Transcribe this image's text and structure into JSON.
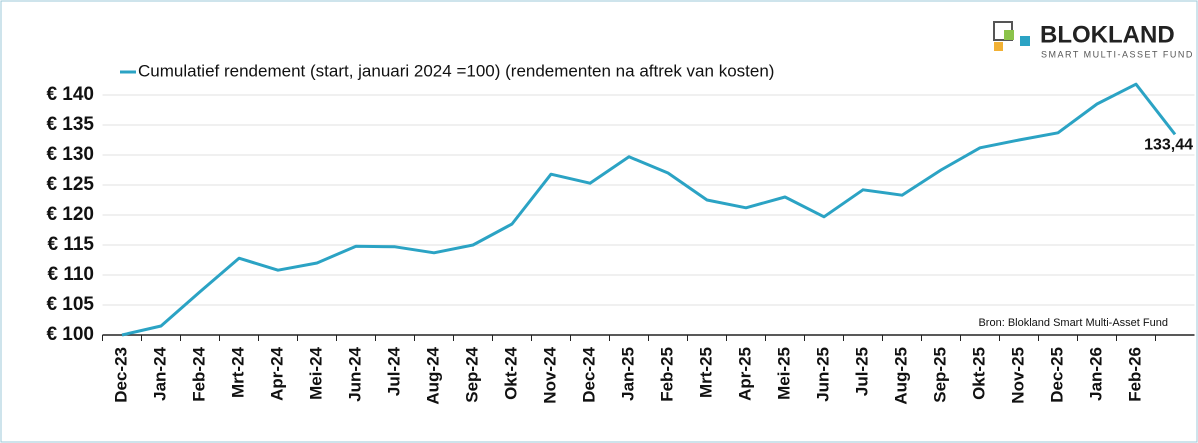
{
  "chart_data": {
    "type": "line",
    "legend": "Cumulatief rendement (start, januari 2024 =100) (rendementen na aftrek van kosten)",
    "source": "Bron: Blokland Smart Multi-Asset Fund",
    "logo": {
      "name": "BLOKLAND",
      "tagline": "SMART MULTI-ASSET FUND"
    },
    "categories": [
      "Dec-23",
      "Jan-24",
      "Feb-24",
      "Mrt-24",
      "Apr-24",
      "Mei-24",
      "Jun-24",
      "Jul-24",
      "Aug-24",
      "Sep-24",
      "Okt-24",
      "Nov-24",
      "Dec-24",
      "Jan-25",
      "Feb-25",
      "Mrt-25",
      "Apr-25",
      "Mei-25",
      "Jun-25",
      "Jul-25",
      "Aug-25",
      "Sep-25",
      "Okt-25",
      "Nov-25",
      "Dec-25",
      "Jan-26",
      "Feb-26",
      null
    ],
    "series": [
      {
        "name": "Cumulatief rendement",
        "color": "#2ba3c4",
        "values": [
          100,
          101.5,
          107.2,
          112.8,
          110.8,
          112,
          114.8,
          114.7,
          113.7,
          115,
          118.5,
          126.8,
          125.3,
          129.7,
          127,
          122.5,
          121.2,
          123,
          119.7,
          124.2,
          123.3,
          127.5,
          131.2,
          132.5,
          133.7,
          138.5,
          141.8,
          133.44
        ],
        "value_labels": [
          null,
          null,
          null,
          null,
          null,
          null,
          null,
          null,
          null,
          null,
          null,
          null,
          null,
          null,
          null,
          null,
          null,
          null,
          null,
          null,
          null,
          null,
          null,
          null,
          null,
          null,
          null,
          "133,44"
        ]
      }
    ],
    "ylim": [
      100,
      145
    ],
    "yticks": [
      {
        "value": 100,
        "label": "€ 100"
      },
      {
        "value": 105,
        "label": "€ 105"
      },
      {
        "value": 110,
        "label": "€ 110"
      },
      {
        "value": 115,
        "label": "€ 115"
      },
      {
        "value": 120,
        "label": "€ 120"
      },
      {
        "value": 125,
        "label": "€ 125"
      },
      {
        "value": 130,
        "label": "€ 130"
      },
      {
        "value": 135,
        "label": "€ 135"
      },
      {
        "value": 140,
        "label": "€ 140"
      }
    ],
    "grid": true
  }
}
